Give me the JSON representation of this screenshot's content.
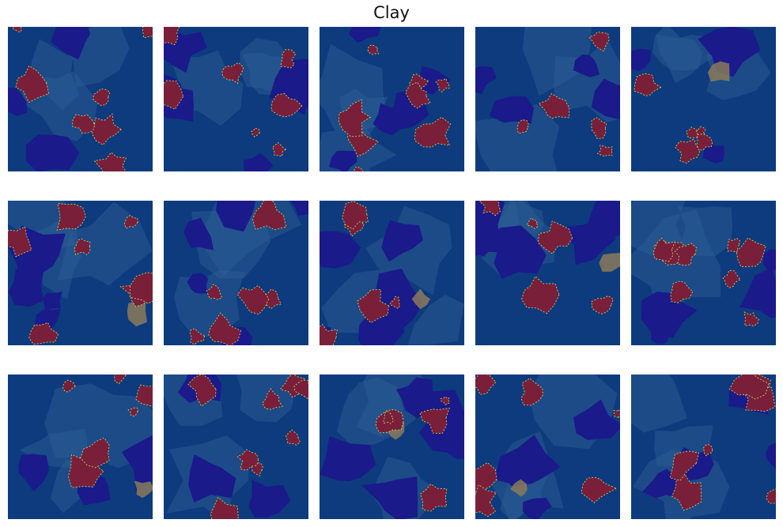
{
  "figure": {
    "title": "Clay",
    "rows": 3,
    "cols": 5,
    "colors": {
      "background_blue": "#0d3b7e",
      "pore_dark_blue": "#1a1a8a",
      "clay_red": "#7a1f3a",
      "grain_light_blue": "#2e5f94",
      "edge_highlight": "#c8e070",
      "mineral_tan": "#8c7a5a"
    },
    "tiles": [
      {
        "seed": 11
      },
      {
        "seed": 23
      },
      {
        "seed": 37
      },
      {
        "seed": 41
      },
      {
        "seed": 53
      },
      {
        "seed": 67
      },
      {
        "seed": 71
      },
      {
        "seed": 83
      },
      {
        "seed": 97
      },
      {
        "seed": 101
      },
      {
        "seed": 113
      },
      {
        "seed": 127
      },
      {
        "seed": 131
      },
      {
        "seed": 149
      },
      {
        "seed": 157
      }
    ]
  }
}
